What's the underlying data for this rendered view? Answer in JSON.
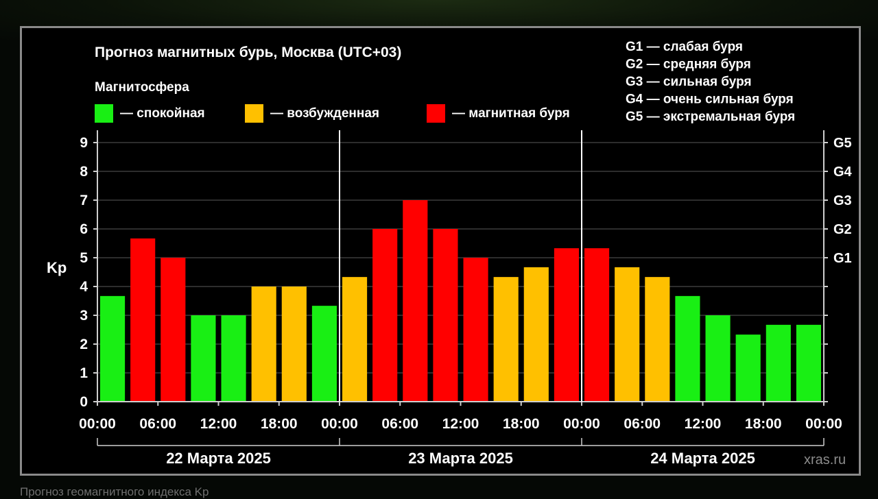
{
  "chart_data": {
    "type": "bar",
    "title": "Прогноз магнитных бурь, Москва (UTC+03)",
    "legend_title": "Магнитосфера",
    "legend": [
      {
        "label": "— спокойная",
        "color": "#19ef14"
      },
      {
        "label": "— возбужденная",
        "color": "#ffc000"
      },
      {
        "label": "— магнитная буря",
        "color": "#ff0000"
      }
    ],
    "storm_legend": [
      "G1 — слабая буря",
      "G2 — средняя буря",
      "G3 — сильная буря",
      "G4 — очень сильная буря",
      "G5 — экстремальная буря"
    ],
    "ylabel": "Kp",
    "ylim": [
      0,
      9
    ],
    "yticks": [
      0,
      1,
      2,
      3,
      4,
      5,
      6,
      7,
      8,
      9
    ],
    "right_ticks": [
      {
        "value": 5,
        "label": "G1"
      },
      {
        "value": 6,
        "label": "G2"
      },
      {
        "value": 7,
        "label": "G3"
      },
      {
        "value": 8,
        "label": "G4"
      },
      {
        "value": 9,
        "label": "G5"
      }
    ],
    "x_tick_labels": [
      "00:00",
      "06:00",
      "12:00",
      "18:00",
      "00:00",
      "06:00",
      "12:00",
      "18:00",
      "00:00",
      "06:00",
      "12:00",
      "18:00",
      "00:00"
    ],
    "days": [
      "22 Марта 2025",
      "23 Марта 2025",
      "24 Марта 2025"
    ],
    "values": [
      3.67,
      5.67,
      5.0,
      3.0,
      3.0,
      4.0,
      4.0,
      3.33,
      4.33,
      6.0,
      7.0,
      6.0,
      5.0,
      4.33,
      4.67,
      5.33,
      5.33,
      4.67,
      4.33,
      3.67,
      3.0,
      2.33,
      2.67,
      2.67
    ],
    "levels": [
      "quiet",
      "storm",
      "storm",
      "quiet",
      "quiet",
      "excited",
      "excited",
      "quiet",
      "excited",
      "storm",
      "storm",
      "storm",
      "storm",
      "excited",
      "excited",
      "storm",
      "storm",
      "excited",
      "excited",
      "quiet",
      "quiet",
      "quiet",
      "quiet",
      "quiet"
    ],
    "colors": {
      "quiet": "#19ef14",
      "excited": "#ffc000",
      "storm": "#ff0000"
    },
    "grid": true
  },
  "watermark": "xras.ru",
  "caption": "Прогноз геомагнитного индекса Kp"
}
